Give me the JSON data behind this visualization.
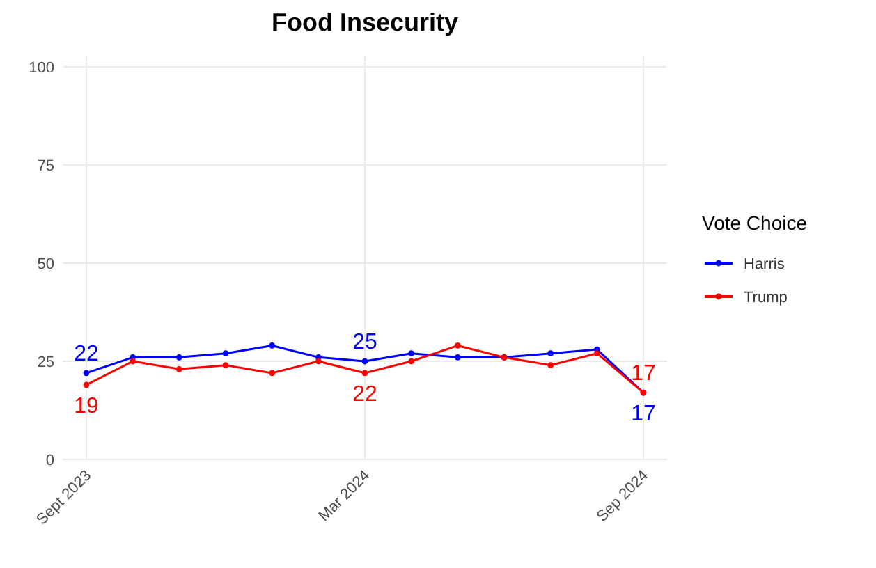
{
  "chart_data": {
    "type": "line",
    "title": "Food Insecurity",
    "legend_title": "Vote Choice",
    "categories": [
      "Sept 2023",
      null,
      null,
      null,
      null,
      null,
      "Mar 2024",
      null,
      null,
      null,
      null,
      null,
      "Sep 2024"
    ],
    "series": [
      {
        "name": "Harris",
        "color": "#0000ff",
        "values": [
          22,
          26,
          26,
          27,
          29,
          26,
          25,
          27,
          26,
          26,
          27,
          28,
          17
        ],
        "value_labels": [
          "22",
          null,
          null,
          null,
          null,
          null,
          "25",
          null,
          null,
          null,
          null,
          null,
          "17"
        ]
      },
      {
        "name": "Trump",
        "color": "#ff0000",
        "values": [
          19,
          25,
          23,
          24,
          22,
          25,
          22,
          25,
          29,
          26,
          24,
          27,
          17
        ],
        "value_labels": [
          "19",
          null,
          null,
          null,
          null,
          null,
          "22",
          null,
          null,
          null,
          null,
          null,
          "17"
        ]
      }
    ],
    "ylim": [
      0,
      100
    ],
    "yticks": [
      0,
      25,
      50,
      75,
      100
    ],
    "grid": true,
    "legend": "right",
    "marker": "circle",
    "line_style": "solid"
  }
}
